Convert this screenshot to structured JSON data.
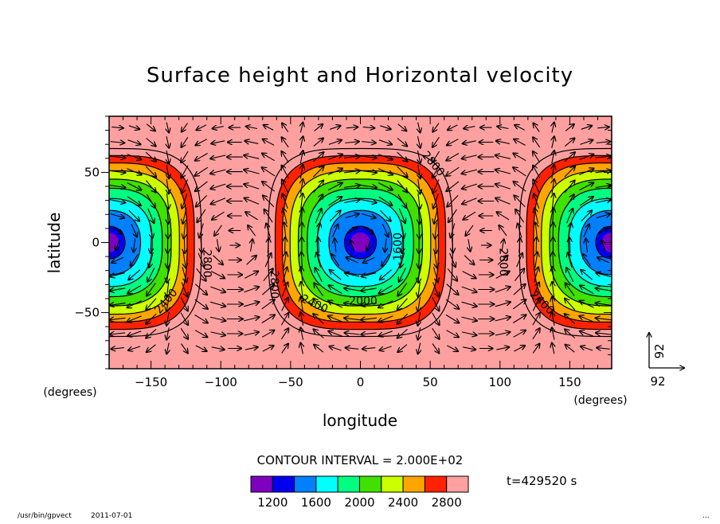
{
  "chart_data": {
    "type": "heatmap",
    "title": "Surface height and Horizontal velocity",
    "xlabel": "longitude",
    "ylabel": "latitude",
    "x_unit": "(degrees)",
    "y_unit": "(degrees)",
    "xlim": [
      -180,
      180
    ],
    "ylim": [
      -90,
      90
    ],
    "x_ticks": [
      -150,
      -100,
      -50,
      0,
      50,
      100,
      150
    ],
    "y_ticks": [
      50,
      0,
      -50
    ],
    "field": "Surface height",
    "vector_field": "Horizontal velocity",
    "field_centers": [
      {
        "lon": -180,
        "lat": 0,
        "value": 1100
      },
      {
        "lon": 0,
        "lat": 0,
        "value": 1100
      },
      {
        "lon": 180,
        "lat": 0,
        "value": 1100
      }
    ],
    "background_value": 2900,
    "contour_levels": [
      1200,
      1400,
      1600,
      1800,
      2000,
      2200,
      2400,
      2600,
      2800
    ],
    "contour_labels": [
      {
        "text": "2800",
        "lon": 52,
        "lat": 56,
        "rot": 50
      },
      {
        "text": "2800",
        "lon": -110,
        "lat": -15,
        "rot": 90
      },
      {
        "text": "2800",
        "lon": -62,
        "lat": -30,
        "rot": 90
      },
      {
        "text": "2400",
        "lon": -33,
        "lat": -44,
        "rot": 25
      },
      {
        "text": "2000",
        "lon": 2,
        "lat": -42,
        "rot": 0
      },
      {
        "text": "1600",
        "lon": 27,
        "lat": -3,
        "rot": -90
      },
      {
        "text": "2800",
        "lon": 102,
        "lat": -14,
        "rot": 90
      },
      {
        "text": "2400",
        "lon": 130,
        "lat": -43,
        "rot": 45
      },
      {
        "text": "2400",
        "lon": -139,
        "lat": -42,
        "rot": -50
      }
    ],
    "contour_interval": "CONTOUR INTERVAL = 2.000E+02",
    "colorbar": {
      "colors": [
        "#7f00bf",
        "#0000ee",
        "#0080ff",
        "#00ffff",
        "#00ff80",
        "#40e000",
        "#ccff00",
        "#ffa500",
        "#ff2200",
        "#ffa0a0"
      ],
      "labels": [
        "1200",
        "1600",
        "2000",
        "2400",
        "2800"
      ]
    },
    "reference_vector": {
      "x_label": "92",
      "y_label": "92"
    },
    "time": "t=429520 s",
    "grid": false
  },
  "footer": {
    "program": "/usr/bin/gpvect",
    "date": "2011-07-01",
    "mark": "..."
  }
}
